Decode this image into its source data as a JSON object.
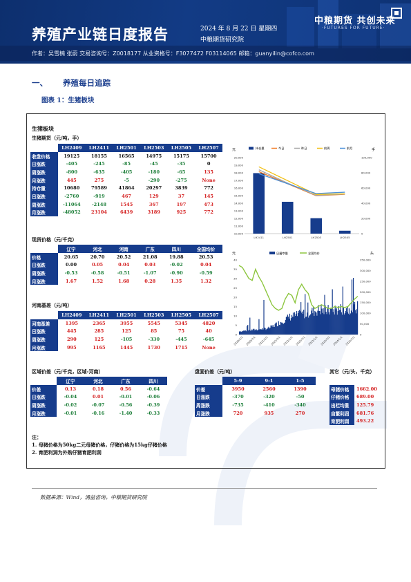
{
  "header": {
    "title": "养殖产业链日度报告",
    "date": "2024 年 8 月 22 日 星期四",
    "institute": "中粮期货研究院",
    "logo_cn": "中粮期货 共创未来",
    "logo_en": "·FUTURES FOR FUTURE·",
    "authors": "作者：吴雪楠 张蔚 交易咨询号：Z0018177 从业资格号：F3077472 F03114065 邮箱：guanyilin@cofco.com"
  },
  "section": {
    "num": "一、",
    "title": "养殖每日追踪"
  },
  "figure": {
    "title": "图表 1：生猪板块"
  },
  "panel": {
    "title": "生猪板块",
    "futures": {
      "caption": "生猪期货（元/吨，手）",
      "columns": [
        "LH2409",
        "LH2411",
        "LH2501",
        "LH2503",
        "LH2505",
        "LH2507"
      ],
      "rows": [
        {
          "label": "收盘价格",
          "values": [
            "19125",
            "18155",
            "16565",
            "14975",
            "15175",
            "15700"
          ],
          "colors": [
            "b",
            "b",
            "b",
            "b",
            "b",
            "b"
          ]
        },
        {
          "label": "日涨跌",
          "values": [
            "-405",
            "-245",
            "-85",
            "-45",
            "-35",
            "0"
          ],
          "colors": [
            "g",
            "g",
            "g",
            "g",
            "g",
            "b"
          ]
        },
        {
          "label": "周涨跌",
          "values": [
            "-800",
            "-635",
            "-405",
            "-180",
            "-65",
            "135"
          ],
          "colors": [
            "g",
            "g",
            "g",
            "g",
            "g",
            "r"
          ]
        },
        {
          "label": "月涨跌",
          "values": [
            "445",
            "275",
            "-5",
            "-290",
            "-275",
            "None"
          ],
          "colors": [
            "r",
            "r",
            "g",
            "g",
            "g",
            "r"
          ]
        },
        {
          "label": "持仓量",
          "values": [
            "10680",
            "79589",
            "41864",
            "20297",
            "3839",
            "772"
          ],
          "colors": [
            "b",
            "b",
            "b",
            "b",
            "b",
            "b"
          ]
        },
        {
          "label": "日涨跌",
          "values": [
            "-2760",
            "-919",
            "467",
            "129",
            "37",
            "145"
          ],
          "colors": [
            "g",
            "g",
            "r",
            "r",
            "r",
            "r"
          ]
        },
        {
          "label": "周涨跌",
          "values": [
            "-11064",
            "-2148",
            "1545",
            "367",
            "197",
            "473"
          ],
          "colors": [
            "g",
            "g",
            "r",
            "r",
            "r",
            "r"
          ]
        },
        {
          "label": "月涨跌",
          "values": [
            "-48052",
            "23104",
            "6439",
            "3189",
            "925",
            "772"
          ],
          "colors": [
            "g",
            "r",
            "r",
            "r",
            "r",
            "r"
          ]
        }
      ]
    },
    "spot": {
      "caption": "现货价格（元/千克）",
      "columns": [
        "辽宁",
        "河北",
        "河南",
        "广东",
        "四川",
        "全国均价"
      ],
      "rows": [
        {
          "label": "价格",
          "values": [
            "20.65",
            "20.70",
            "20.52",
            "21.08",
            "19.88",
            "20.53"
          ],
          "colors": [
            "b",
            "b",
            "b",
            "b",
            "b",
            "b"
          ]
        },
        {
          "label": "日涨跌",
          "values": [
            "0.00",
            "0.05",
            "0.04",
            "0.03",
            "-0.02",
            "0.04"
          ],
          "colors": [
            "b",
            "r",
            "r",
            "r",
            "g",
            "r"
          ]
        },
        {
          "label": "周涨跌",
          "values": [
            "-0.53",
            "-0.58",
            "-0.51",
            "-1.07",
            "-0.90",
            "-0.59"
          ],
          "colors": [
            "g",
            "g",
            "g",
            "g",
            "g",
            "g"
          ]
        },
        {
          "label": "月涨跌",
          "values": [
            "1.67",
            "1.52",
            "1.68",
            "0.28",
            "1.35",
            "1.32"
          ],
          "colors": [
            "r",
            "r",
            "r",
            "r",
            "r",
            "r"
          ]
        }
      ]
    },
    "basis": {
      "caption": "河南基差（元/吨）",
      "columns": [
        "LH2409",
        "LH2411",
        "LH2501",
        "LH2503",
        "LH2505",
        "LH2507"
      ],
      "rows": [
        {
          "label": "河南基差",
          "values": [
            "1395",
            "2365",
            "3955",
            "5545",
            "5345",
            "4820"
          ],
          "colors": [
            "r",
            "r",
            "r",
            "r",
            "r",
            "r"
          ]
        },
        {
          "label": "日涨跌",
          "values": [
            "445",
            "285",
            "125",
            "85",
            "75",
            "40"
          ],
          "colors": [
            "r",
            "r",
            "r",
            "r",
            "r",
            "r"
          ]
        },
        {
          "label": "周涨跌",
          "values": [
            "290",
            "125",
            "-105",
            "-330",
            "-445",
            "-645"
          ],
          "colors": [
            "r",
            "r",
            "g",
            "g",
            "g",
            "g"
          ]
        },
        {
          "label": "月涨跌",
          "values": [
            "995",
            "1165",
            "1445",
            "1730",
            "1715",
            "None"
          ],
          "colors": [
            "r",
            "r",
            "r",
            "r",
            "r",
            "r"
          ]
        }
      ]
    },
    "regional": {
      "caption": "区域价差（元/千克，区域-河南）",
      "columns": [
        "辽宁",
        "河北",
        "广东",
        "四川"
      ],
      "rows": [
        {
          "label": "价差",
          "values": [
            "0.13",
            "0.18",
            "0.56",
            "-0.64"
          ],
          "colors": [
            "r",
            "r",
            "r",
            "g"
          ]
        },
        {
          "label": "日涨跌",
          "values": [
            "-0.04",
            "0.01",
            "-0.01",
            "-0.06"
          ],
          "colors": [
            "g",
            "r",
            "g",
            "g"
          ]
        },
        {
          "label": "周涨跌",
          "values": [
            "-0.02",
            "-0.07",
            "-0.56",
            "-0.39"
          ],
          "colors": [
            "g",
            "g",
            "g",
            "g"
          ]
        },
        {
          "label": "月涨跌",
          "values": [
            "-0.01",
            "-0.16",
            "-1.40",
            "-0.33"
          ],
          "colors": [
            "g",
            "g",
            "g",
            "g"
          ]
        }
      ]
    },
    "spread": {
      "caption": "盘面价差（元/吨）",
      "columns": [
        "5-9",
        "9-1",
        "1-5"
      ],
      "rows": [
        {
          "label": "价差",
          "values": [
            "3950",
            "2560",
            "1390"
          ],
          "colors": [
            "r",
            "r",
            "r"
          ]
        },
        {
          "label": "日涨跌",
          "values": [
            "-370",
            "-320",
            "-50"
          ],
          "colors": [
            "g",
            "g",
            "g"
          ]
        },
        {
          "label": "周涨跌",
          "values": [
            "-735",
            "-410",
            "-340"
          ],
          "colors": [
            "g",
            "g",
            "g"
          ]
        },
        {
          "label": "月涨跌",
          "values": [
            "720",
            "935",
            "270"
          ],
          "colors": [
            "r",
            "r",
            "r"
          ]
        }
      ]
    },
    "other": {
      "caption": "其它（元/头，千克）",
      "rows": [
        {
          "label": "母猪价格",
          "value": "1662.00"
        },
        {
          "label": "仔猪价格",
          "value": "689.00"
        },
        {
          "label": "出栏均重",
          "value": "125.79"
        },
        {
          "label": "自繁利润",
          "value": "681.76"
        },
        {
          "label": "育肥利润",
          "value": "493.22"
        }
      ]
    },
    "notes": {
      "title": "注：",
      "items": [
        "1. 母猪价格为50kg二元母猪价格，仔猪价格为15kg仔猪价格",
        "2. 育肥利润为外购仔猪育肥利润"
      ]
    },
    "source": "数据来源：Wind，涌益咨询，中粮期货研究院"
  },
  "colors": {
    "navy": "#163c8c",
    "up": "#d42020",
    "down": "#1e7f3a"
  },
  "chart_data": [
    {
      "type": "bar",
      "categories": [
        "LH2411",
        "LH2501",
        "LH2503",
        "LH2505"
      ],
      "left_axis_label": "元",
      "right_axis_label": "手",
      "ylim_left": [
        10000,
        20000
      ],
      "ylim_left_ticks": [
        "20,000",
        "19,000",
        "18,000",
        "17,000",
        "16,000",
        "15,000",
        "14,000",
        "13,000",
        "12,000",
        "11,000",
        "10,000"
      ],
      "ylim_right": [
        0,
        100000
      ],
      "ylim_right_ticks": [
        "100,000",
        "80,000",
        "60,000",
        "40,000",
        "20,000",
        "0"
      ],
      "legend": [
        "持仓量",
        "今日",
        "昨日",
        "前周",
        "前月"
      ],
      "bars": {
        "name": "持仓量",
        "axis": "right",
        "values": [
          79589,
          41864,
          20297,
          3839
        ]
      },
      "series": [
        {
          "name": "今日",
          "color": "#f07b25",
          "values": [
            18155,
            16565,
            14975,
            15175
          ]
        },
        {
          "name": "昨日",
          "color": "#a6a6a6",
          "values": [
            18400,
            16650,
            15020,
            15210
          ]
        },
        {
          "name": "前周",
          "color": "#f2c014",
          "values": [
            18790,
            16970,
            15155,
            15240
          ]
        },
        {
          "name": "前月",
          "color": "#4a90d9",
          "values": [
            17880,
            16570,
            15265,
            15450
          ]
        }
      ]
    },
    {
      "type": "line",
      "left_axis_label": "元",
      "right_axis_label": "头",
      "ylim_left": [
        0,
        40
      ],
      "ylim_left_ticks": [
        "40",
        "35",
        "30",
        "25",
        "20",
        "15",
        "10",
        "5",
        "0"
      ],
      "ylim_right": [
        0,
        350000
      ],
      "ylim_right_ticks": [
        "350,000",
        "300,000",
        "250,000",
        "200,000",
        "150,000",
        "100,000",
        "50,000",
        "0"
      ],
      "legend": [
        "日屠宰量",
        "全国均价"
      ],
      "x_ticks": [
        "2020/1/1",
        "2020/7/1",
        "2021/1/1",
        "2021/7/1",
        "2022/1/1",
        "2022/7/1",
        "2023/1/1",
        "2023/7/1",
        "2024/1/1",
        "2024/7/1"
      ],
      "series": [
        {
          "name": "日屠宰量",
          "color": "#163c8c",
          "axis": "right"
        },
        {
          "name": "全国均价",
          "color": "#8dc63f",
          "axis": "left",
          "values": [
            37,
            36,
            33,
            30,
            29,
            35,
            31,
            28,
            24,
            20,
            16,
            14,
            13,
            14,
            19,
            22,
            21,
            17,
            24,
            27,
            24,
            22,
            16,
            14,
            15,
            16,
            15,
            14,
            14,
            15,
            14.5,
            15,
            14.5,
            15,
            17,
            19,
            20.5
          ]
        }
      ]
    }
  ]
}
